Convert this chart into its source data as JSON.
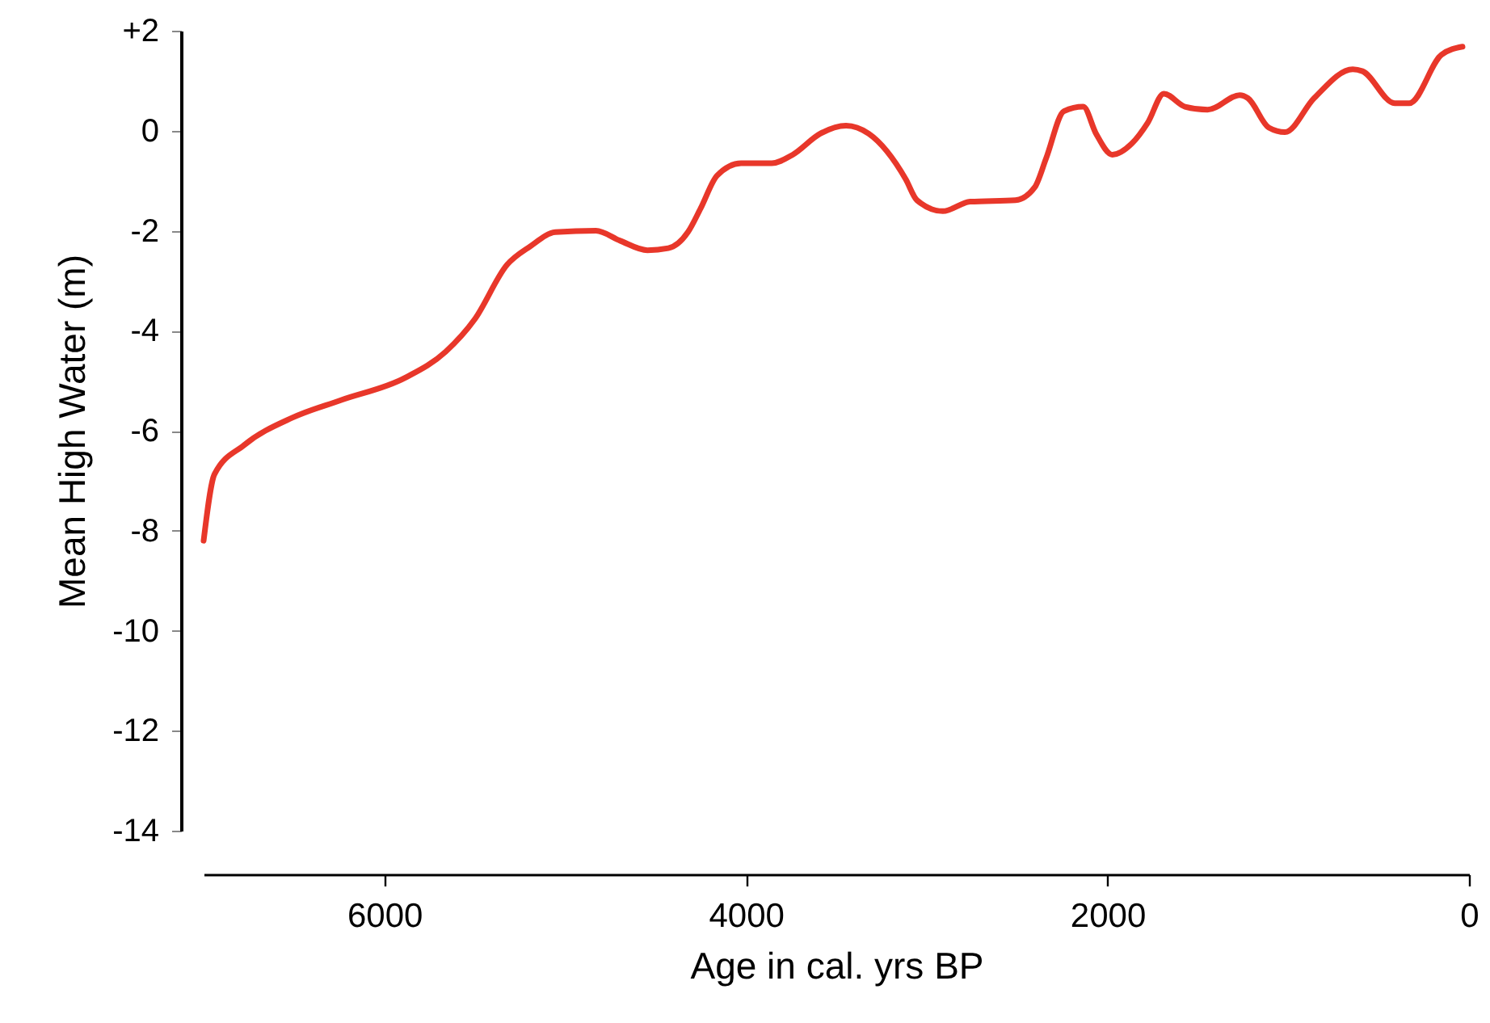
{
  "chart_data": {
    "type": "line",
    "xlabel": "Age in cal. yrs BP",
    "ylabel": "Mean High Water (m)",
    "x": [
      7000,
      6940,
      6777,
      6509,
      6241,
      5884,
      5661,
      5500,
      5321,
      5196,
      5054,
      4830,
      4696,
      4545,
      4429,
      4321,
      4250,
      4160,
      4027,
      3857,
      3741,
      3589,
      3446,
      3321,
      3116,
      3054,
      2911,
      2759,
      2509,
      2402,
      2339,
      2241,
      2134,
      2063,
      1973,
      1866,
      1777,
      1688,
      1571,
      1446,
      1268,
      1223,
      1107,
      1018,
      857,
      643,
      589,
      411,
      330,
      152,
      36
    ],
    "series": [
      {
        "color": "#e8372a",
        "values": [
          -8.2,
          -6.87,
          -6.29,
          -5.74,
          -5.39,
          -4.94,
          -4.42,
          -3.77,
          -2.68,
          -2.32,
          -2.03,
          -2.0,
          -2.2,
          -2.39,
          -2.35,
          -2.03,
          -1.55,
          -0.9,
          -0.65,
          -0.65,
          -0.48,
          -0.06,
          0.1,
          -0.06,
          -0.97,
          -1.39,
          -1.61,
          -1.42,
          -1.39,
          -1.13,
          -0.55,
          0.39,
          0.48,
          -0.06,
          -0.48,
          -0.26,
          0.16,
          0.74,
          0.48,
          0.42,
          0.71,
          0.65,
          0.06,
          -0.03,
          0.65,
          1.23,
          1.19,
          0.55,
          0.55,
          1.52,
          1.68
        ]
      }
    ],
    "xlim": [
      7000,
      0
    ],
    "xticks": [
      6000,
      4000,
      2000,
      0
    ],
    "ylim": [
      -14,
      2
    ],
    "yticks": [
      -14,
      -12,
      -10,
      -8,
      -6,
      -4,
      -2,
      0,
      {
        "value": 2,
        "label": "+2"
      }
    ],
    "grid": false,
    "marker": "none",
    "line_style": "solid"
  }
}
